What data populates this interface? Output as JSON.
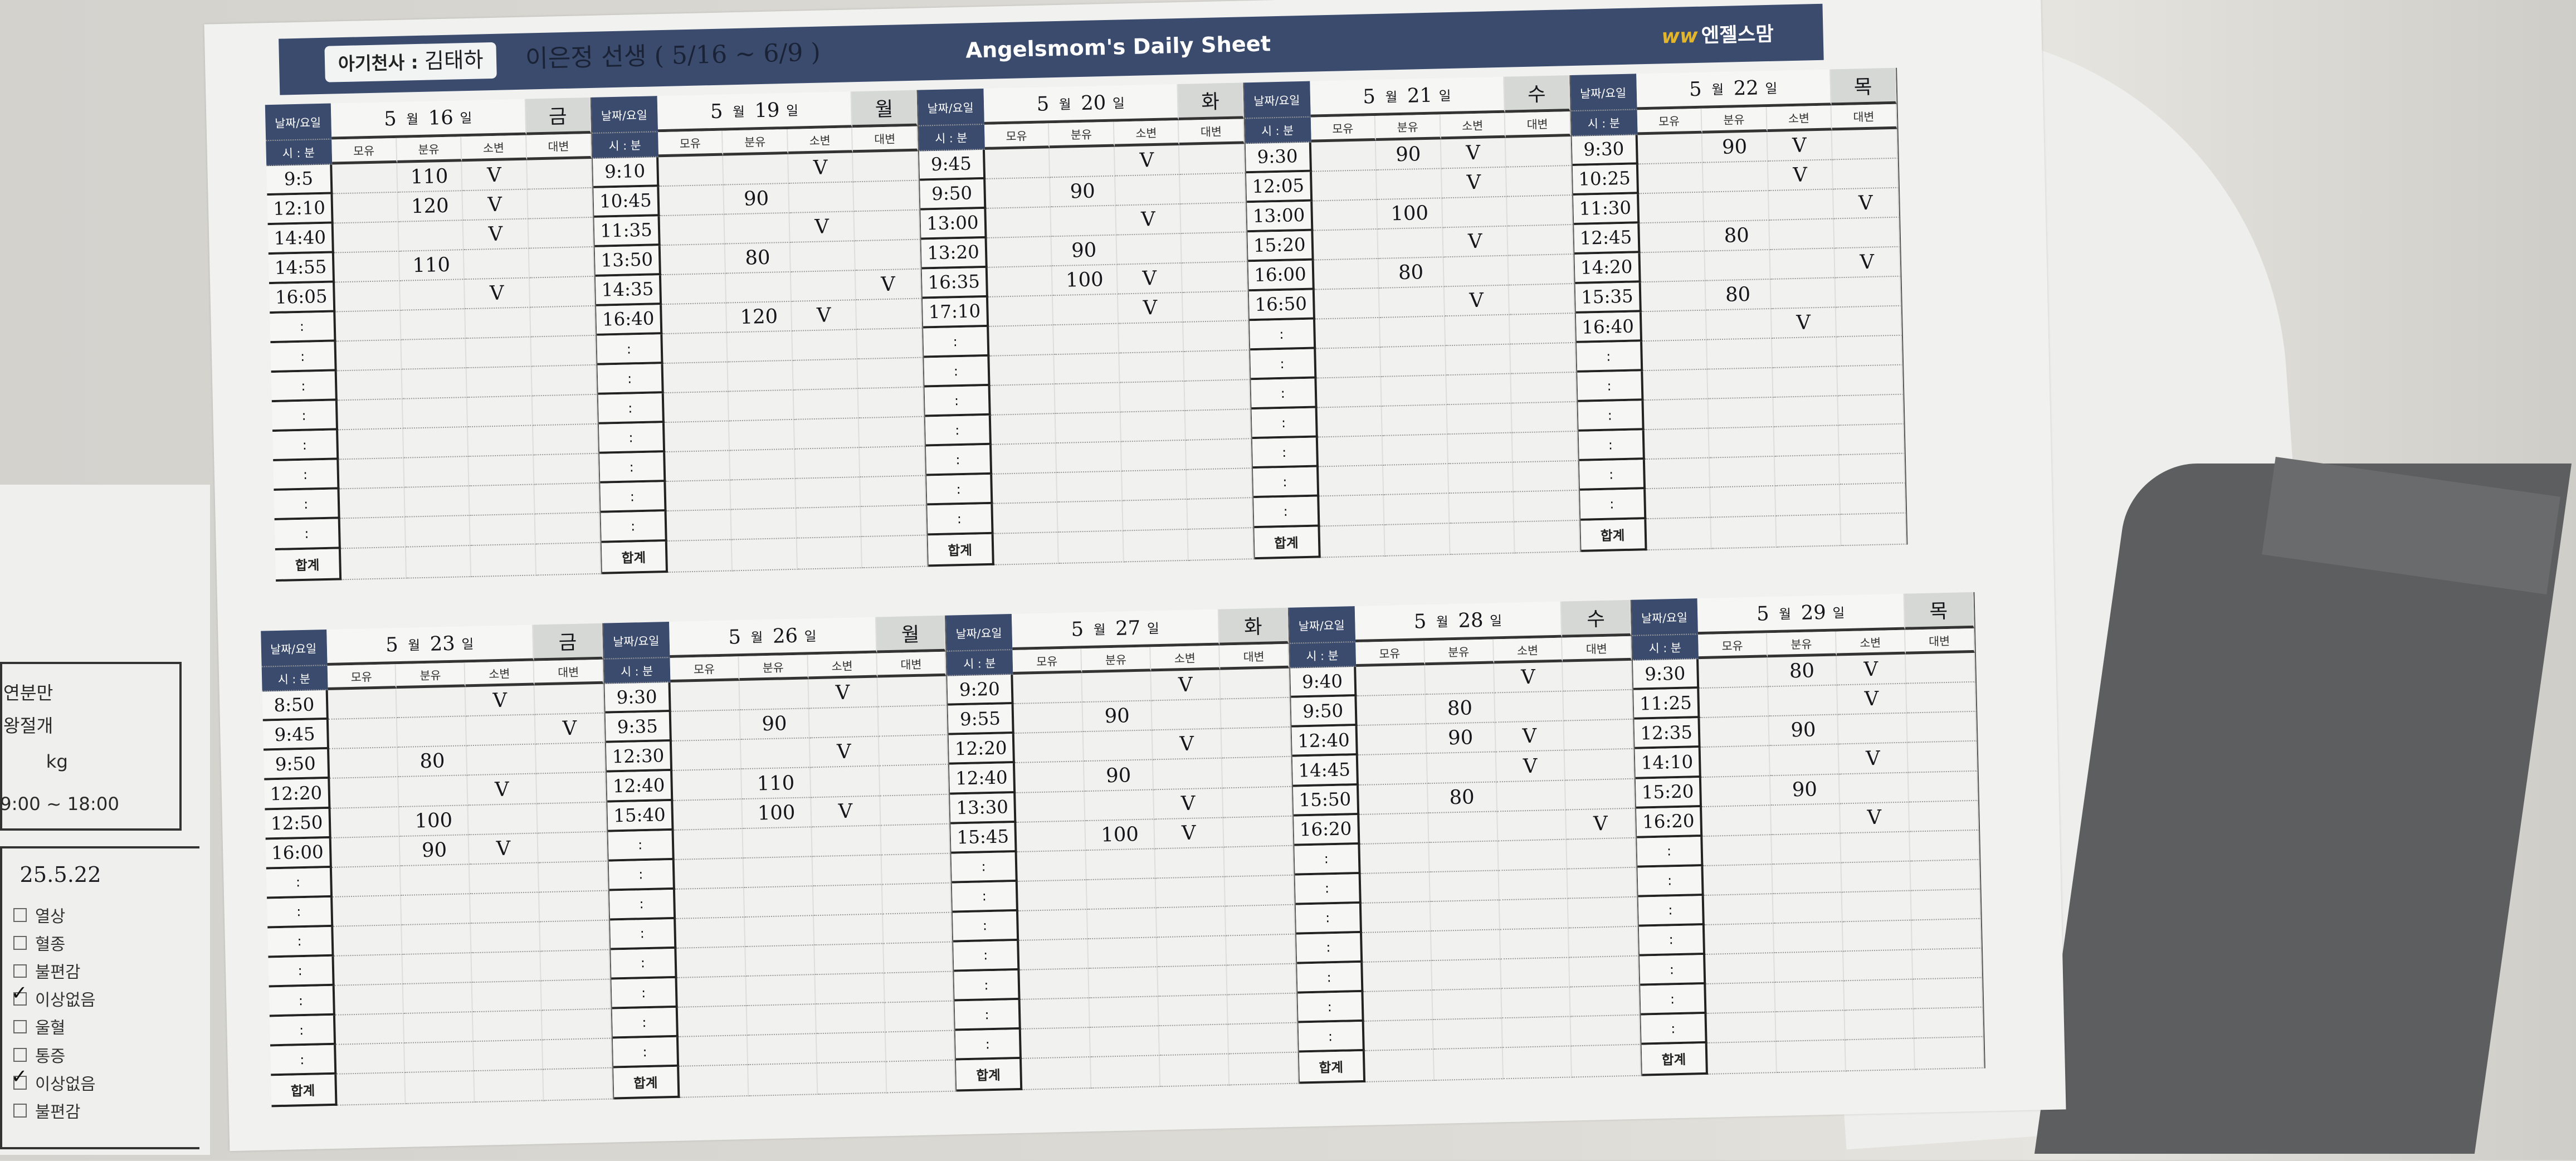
{
  "header": {
    "baby_label": "아기천사 :",
    "baby_name": "김태하",
    "caregiver_note": "이은정 선생 ( 5/16 ~ 6/9 )",
    "title": "Angelsmom's Daily Sheet",
    "brand": "엔젤스맘",
    "brand_mark": "ww"
  },
  "labels": {
    "date_day": "날짜/요일",
    "hour_min": "시 : 분",
    "breast_milk": "모유",
    "formula": "분유",
    "urine": "소변",
    "stool": "대변",
    "total": "합계",
    "empty_time": ":",
    "month_day_sep": "월",
    "day_suffix": "일"
  },
  "blocks": [
    {
      "days": [
        {
          "month": "5",
          "day": "16",
          "weekday": "금",
          "entries": [
            {
              "time": "9:5",
              "formula": "110",
              "urine": "V",
              "stool": ""
            },
            {
              "time": "12:10",
              "formula": "120",
              "urine": "V",
              "stool": ""
            },
            {
              "time": "14:40",
              "formula": "",
              "urine": "V",
              "stool": ""
            },
            {
              "time": "14:55",
              "formula": "110",
              "urine": "",
              "stool": ""
            },
            {
              "time": "16:05",
              "formula": "",
              "urine": "V",
              "stool": ""
            }
          ]
        },
        {
          "month": "5",
          "day": "19",
          "weekday": "월",
          "entries": [
            {
              "time": "9:10",
              "formula": "",
              "urine": "V",
              "stool": ""
            },
            {
              "time": "10:45",
              "formula": "90",
              "urine": "",
              "stool": ""
            },
            {
              "time": "11:35",
              "formula": "",
              "urine": "V",
              "stool": ""
            },
            {
              "time": "13:50",
              "formula": "80",
              "urine": "",
              "stool": ""
            },
            {
              "time": "14:35",
              "formula": "",
              "urine": "",
              "stool": "V"
            },
            {
              "time": "16:40",
              "formula": "120",
              "urine": "V",
              "stool": ""
            }
          ]
        },
        {
          "month": "5",
          "day": "20",
          "weekday": "화",
          "entries": [
            {
              "time": "9:45",
              "formula": "",
              "urine": "V",
              "stool": ""
            },
            {
              "time": "9:50",
              "formula": "90",
              "urine": "",
              "stool": ""
            },
            {
              "time": "13:00",
              "formula": "",
              "urine": "V",
              "stool": ""
            },
            {
              "time": "13:20",
              "formula": "90",
              "urine": "",
              "stool": ""
            },
            {
              "time": "16:35",
              "formula": "100",
              "urine": "V",
              "stool": ""
            },
            {
              "time": "17:10",
              "formula": "",
              "urine": "V",
              "stool": ""
            }
          ]
        },
        {
          "month": "5",
          "day": "21",
          "weekday": "수",
          "entries": [
            {
              "time": "9:30",
              "formula": "90",
              "urine": "V",
              "stool": ""
            },
            {
              "time": "12:05",
              "formula": "",
              "urine": "V",
              "stool": ""
            },
            {
              "time": "13:00",
              "formula": "100",
              "urine": "",
              "stool": ""
            },
            {
              "time": "15:20",
              "formula": "",
              "urine": "V",
              "stool": ""
            },
            {
              "time": "16:00",
              "formula": "80",
              "urine": "",
              "stool": ""
            },
            {
              "time": "16:50",
              "formula": "",
              "urine": "V",
              "stool": ""
            }
          ]
        },
        {
          "month": "5",
          "day": "22",
          "weekday": "목",
          "entries": [
            {
              "time": "9:30",
              "formula": "90",
              "urine": "V",
              "stool": ""
            },
            {
              "time": "10:25",
              "formula": "",
              "urine": "V",
              "stool": ""
            },
            {
              "time": "11:30",
              "formula": "",
              "urine": "",
              "stool": "V"
            },
            {
              "time": "12:45",
              "formula": "80",
              "urine": "",
              "stool": ""
            },
            {
              "time": "14:20",
              "formula": "",
              "urine": "",
              "stool": "V"
            },
            {
              "time": "15:35",
              "formula": "80",
              "urine": "",
              "stool": ""
            },
            {
              "time": "16:40",
              "formula": "",
              "urine": "V",
              "stool": ""
            }
          ]
        }
      ]
    },
    {
      "days": [
        {
          "month": "5",
          "day": "23",
          "weekday": "금",
          "entries": [
            {
              "time": "8:50",
              "formula": "",
              "urine": "V",
              "stool": ""
            },
            {
              "time": "9:45",
              "formula": "",
              "urine": "",
              "stool": "V"
            },
            {
              "time": "9:50",
              "formula": "80",
              "urine": "",
              "stool": ""
            },
            {
              "time": "12:20",
              "formula": "",
              "urine": "V",
              "stool": ""
            },
            {
              "time": "12:50",
              "formula": "100",
              "urine": "",
              "stool": ""
            },
            {
              "time": "16:00",
              "formula": "90",
              "urine": "V",
              "stool": ""
            }
          ]
        },
        {
          "month": "5",
          "day": "26",
          "weekday": "월",
          "entries": [
            {
              "time": "9:30",
              "formula": "",
              "urine": "V",
              "stool": ""
            },
            {
              "time": "9:35",
              "formula": "90",
              "urine": "",
              "stool": ""
            },
            {
              "time": "12:30",
              "formula": "",
              "urine": "V",
              "stool": ""
            },
            {
              "time": "12:40",
              "formula": "110",
              "urine": "",
              "stool": ""
            },
            {
              "time": "15:40",
              "formula": "100",
              "urine": "V",
              "stool": ""
            }
          ]
        },
        {
          "month": "5",
          "day": "27",
          "weekday": "화",
          "entries": [
            {
              "time": "9:20",
              "formula": "",
              "urine": "V",
              "stool": ""
            },
            {
              "time": "9:55",
              "formula": "90",
              "urine": "",
              "stool": ""
            },
            {
              "time": "12:20",
              "formula": "",
              "urine": "V",
              "stool": ""
            },
            {
              "time": "12:40",
              "formula": "90",
              "urine": "",
              "stool": ""
            },
            {
              "time": "13:30",
              "formula": "",
              "urine": "V",
              "stool": ""
            },
            {
              "time": "15:45",
              "formula": "100",
              "urine": "V",
              "stool": ""
            }
          ]
        },
        {
          "month": "5",
          "day": "28",
          "weekday": "수",
          "entries": [
            {
              "time": "9:40",
              "formula": "",
              "urine": "V",
              "stool": ""
            },
            {
              "time": "9:50",
              "formula": "80",
              "urine": "",
              "stool": ""
            },
            {
              "time": "12:40",
              "formula": "90",
              "urine": "V",
              "stool": ""
            },
            {
              "time": "14:45",
              "formula": "",
              "urine": "V",
              "stool": ""
            },
            {
              "time": "15:50",
              "formula": "80",
              "urine": "",
              "stool": ""
            },
            {
              "time": "16:20",
              "formula": "",
              "urine": "",
              "stool": "V"
            }
          ]
        },
        {
          "month": "5",
          "day": "29",
          "weekday": "목",
          "entries": [
            {
              "time": "9:30",
              "formula": "80",
              "urine": "V",
              "stool": ""
            },
            {
              "time": "11:25",
              "formula": "",
              "urine": "V",
              "stool": ""
            },
            {
              "time": "12:35",
              "formula": "90",
              "urine": "",
              "stool": ""
            },
            {
              "time": "14:10",
              "formula": "",
              "urine": "V",
              "stool": ""
            },
            {
              "time": "15:20",
              "formula": "90",
              "urine": "",
              "stool": ""
            },
            {
              "time": "16:20",
              "formula": "",
              "urine": "V",
              "stool": ""
            }
          ]
        }
      ]
    }
  ],
  "side_sheet": {
    "delivery_1": "연분만",
    "delivery_2": "왕절개",
    "weight_unit": "kg",
    "hours": "9:00 ~ 18:00",
    "date": "25.5.22",
    "checks": [
      {
        "label": "열상",
        "checked": false
      },
      {
        "label": "혈종",
        "checked": false
      },
      {
        "label": "불편감",
        "checked": false
      },
      {
        "label": "이상없음",
        "checked": true
      },
      {
        "label": "울혈",
        "checked": false
      },
      {
        "label": "통증",
        "checked": false
      },
      {
        "label": "이상없음",
        "checked": true
      },
      {
        "label": "불편감",
        "checked": false
      }
    ]
  },
  "colors": {
    "banner": "#3b4b6e",
    "brand_mark": "#e3b52a",
    "paper": "#f1f2f0"
  }
}
